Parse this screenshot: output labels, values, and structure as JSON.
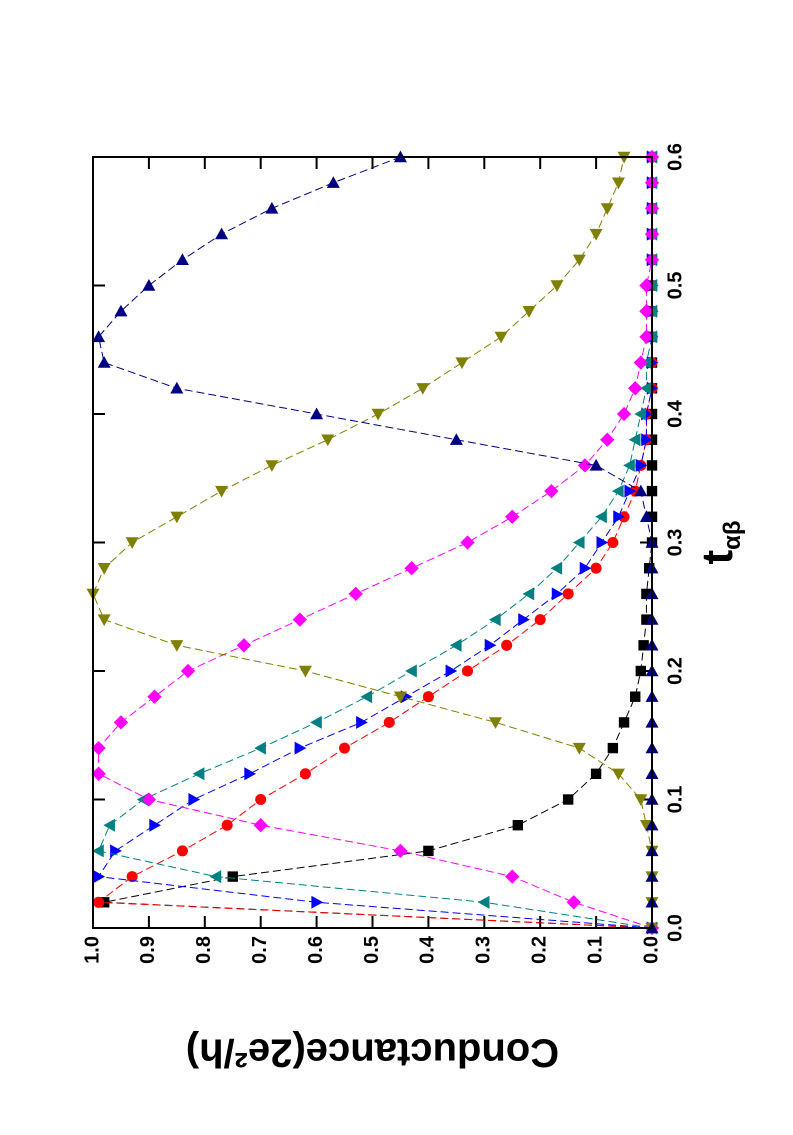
{
  "chart_data": {
    "type": "line",
    "x_label": "t",
    "x_label_subscript": "αβ",
    "y_label": "Conductance(2e²/h)",
    "x": [
      0,
      0.02,
      0.04,
      0.06,
      0.08,
      0.1,
      0.12,
      0.14,
      0.16,
      0.18,
      0.2,
      0.22,
      0.24,
      0.26,
      0.28,
      0.3,
      0.32,
      0.34,
      0.36,
      0.38,
      0.4,
      0.42,
      0.44,
      0.46,
      0.48,
      0.5,
      0.52,
      0.54,
      0.56,
      0.58,
      0.6
    ],
    "series": [
      {
        "color": "#000000",
        "marker": "square",
        "values": [
          0,
          0.98,
          0.75,
          0.4,
          0.24,
          0.15,
          0.1,
          0.07,
          0.05,
          0.03,
          0.02,
          0.015,
          0.01,
          0.01,
          0.005,
          0,
          0,
          0,
          0,
          0,
          0,
          0,
          0,
          0,
          0,
          0,
          0,
          0,
          0,
          0,
          0
        ]
      },
      {
        "color": "#ff0000",
        "marker": "circle",
        "values": [
          0,
          0.99,
          0.93,
          0.84,
          0.76,
          0.7,
          0.62,
          0.55,
          0.47,
          0.4,
          0.33,
          0.26,
          0.2,
          0.15,
          0.1,
          0.07,
          0.05,
          0.03,
          0.02,
          0.01,
          0.01,
          0,
          0,
          0,
          0,
          0,
          0,
          0,
          0,
          0,
          0
        ]
      },
      {
        "color": "#0000ff",
        "marker": "triangle-down",
        "values": [
          0,
          0.6,
          0.99,
          0.96,
          0.89,
          0.82,
          0.72,
          0.63,
          0.52,
          0.44,
          0.36,
          0.29,
          0.23,
          0.17,
          0.12,
          0.09,
          0.06,
          0.04,
          0.02,
          0.01,
          0.01,
          0,
          0,
          0,
          0,
          0,
          0,
          0,
          0,
          0,
          0
        ]
      },
      {
        "color": "#008080",
        "marker": "triangle-up",
        "values": [
          0,
          0.3,
          0.78,
          0.99,
          0.97,
          0.91,
          0.81,
          0.7,
          0.6,
          0.51,
          0.43,
          0.35,
          0.28,
          0.22,
          0.17,
          0.13,
          0.09,
          0.06,
          0.04,
          0.03,
          0.02,
          0.01,
          0.01,
          0,
          0,
          0,
          0,
          0,
          0,
          0,
          0
        ]
      },
      {
        "color": "#ff00ff",
        "marker": "diamond",
        "values": [
          0,
          0.14,
          0.25,
          0.45,
          0.7,
          0.9,
          0.99,
          0.99,
          0.95,
          0.89,
          0.83,
          0.73,
          0.63,
          0.53,
          0.43,
          0.33,
          0.25,
          0.18,
          0.12,
          0.08,
          0.05,
          0.03,
          0.02,
          0.01,
          0.01,
          0.01,
          0,
          0,
          0,
          0,
          0
        ]
      },
      {
        "color": "#808000",
        "marker": "triangle-left",
        "values": [
          0,
          0,
          0,
          0,
          0.01,
          0.02,
          0.06,
          0.13,
          0.28,
          0.45,
          0.62,
          0.85,
          0.98,
          1.0,
          0.98,
          0.93,
          0.85,
          0.77,
          0.68,
          0.58,
          0.49,
          0.41,
          0.34,
          0.27,
          0.22,
          0.17,
          0.13,
          0.1,
          0.08,
          0.06,
          0.05
        ]
      },
      {
        "color": "#000080",
        "marker": "triangle-right",
        "values": [
          0,
          0,
          0,
          0,
          0,
          0,
          0,
          0,
          0,
          0,
          0,
          0,
          0,
          0,
          0,
          0,
          0.01,
          0.02,
          0.1,
          0.35,
          0.6,
          0.85,
          0.98,
          0.99,
          0.95,
          0.9,
          0.84,
          0.77,
          0.68,
          0.57,
          0.45
        ]
      }
    ],
    "xlim": [
      0,
      0.6
    ],
    "xticks": [
      {
        "value": 0,
        "label": "0.0"
      },
      {
        "value": 0.1,
        "label": "0.1"
      },
      {
        "value": 0.2,
        "label": "0.2"
      },
      {
        "value": 0.3,
        "label": "0.3"
      },
      {
        "value": 0.4,
        "label": "0.4"
      },
      {
        "value": 0.5,
        "label": "0.5"
      },
      {
        "value": 0.6,
        "label": "0.6"
      }
    ],
    "ylim": [
      0,
      1
    ],
    "yticks": [
      {
        "value": 0,
        "label": "0.0"
      },
      {
        "value": 0.1,
        "label": "0.1"
      },
      {
        "value": 0.2,
        "label": "0.2"
      },
      {
        "value": 0.3,
        "label": "0.3"
      },
      {
        "value": 0.4,
        "label": "0.4"
      },
      {
        "value": 0.5,
        "label": "0.5"
      },
      {
        "value": 0.6,
        "label": "0.6"
      },
      {
        "value": 0.7,
        "label": "0.7"
      },
      {
        "value": 0.8,
        "label": "0.8"
      },
      {
        "value": 0.9,
        "label": "0.9"
      },
      {
        "value": 1,
        "label": "1.0"
      }
    ],
    "rotation": -90
  }
}
